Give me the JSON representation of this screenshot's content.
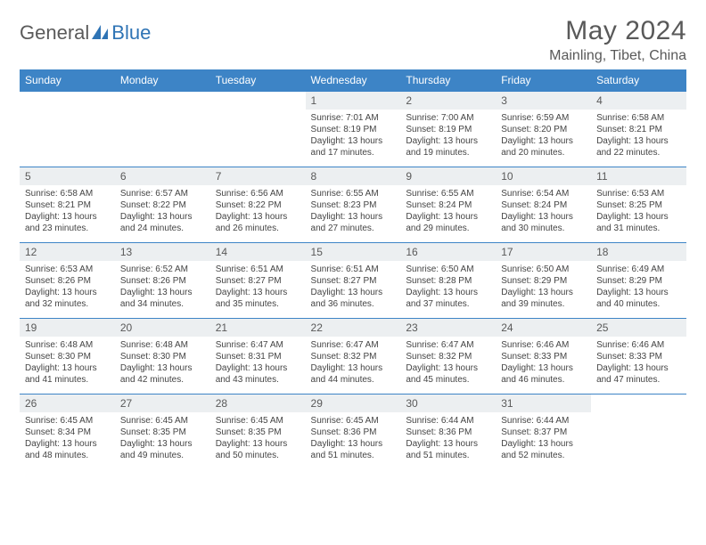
{
  "brand": {
    "part1": "General",
    "part2": "Blue"
  },
  "title": "May 2024",
  "location": "Mainling, Tibet, China",
  "colors": {
    "header_bg": "#3d84c6",
    "header_text": "#ffffff",
    "daynum_bg": "#eceff1",
    "border": "#3d84c6",
    "text": "#444444",
    "title_text": "#595959"
  },
  "weekdays": [
    "Sunday",
    "Monday",
    "Tuesday",
    "Wednesday",
    "Thursday",
    "Friday",
    "Saturday"
  ],
  "days": {
    "1": {
      "sunrise": "7:01 AM",
      "sunset": "8:19 PM",
      "daylight": "13 hours and 17 minutes."
    },
    "2": {
      "sunrise": "7:00 AM",
      "sunset": "8:19 PM",
      "daylight": "13 hours and 19 minutes."
    },
    "3": {
      "sunrise": "6:59 AM",
      "sunset": "8:20 PM",
      "daylight": "13 hours and 20 minutes."
    },
    "4": {
      "sunrise": "6:58 AM",
      "sunset": "8:21 PM",
      "daylight": "13 hours and 22 minutes."
    },
    "5": {
      "sunrise": "6:58 AM",
      "sunset": "8:21 PM",
      "daylight": "13 hours and 23 minutes."
    },
    "6": {
      "sunrise": "6:57 AM",
      "sunset": "8:22 PM",
      "daylight": "13 hours and 24 minutes."
    },
    "7": {
      "sunrise": "6:56 AM",
      "sunset": "8:22 PM",
      "daylight": "13 hours and 26 minutes."
    },
    "8": {
      "sunrise": "6:55 AM",
      "sunset": "8:23 PM",
      "daylight": "13 hours and 27 minutes."
    },
    "9": {
      "sunrise": "6:55 AM",
      "sunset": "8:24 PM",
      "daylight": "13 hours and 29 minutes."
    },
    "10": {
      "sunrise": "6:54 AM",
      "sunset": "8:24 PM",
      "daylight": "13 hours and 30 minutes."
    },
    "11": {
      "sunrise": "6:53 AM",
      "sunset": "8:25 PM",
      "daylight": "13 hours and 31 minutes."
    },
    "12": {
      "sunrise": "6:53 AM",
      "sunset": "8:26 PM",
      "daylight": "13 hours and 32 minutes."
    },
    "13": {
      "sunrise": "6:52 AM",
      "sunset": "8:26 PM",
      "daylight": "13 hours and 34 minutes."
    },
    "14": {
      "sunrise": "6:51 AM",
      "sunset": "8:27 PM",
      "daylight": "13 hours and 35 minutes."
    },
    "15": {
      "sunrise": "6:51 AM",
      "sunset": "8:27 PM",
      "daylight": "13 hours and 36 minutes."
    },
    "16": {
      "sunrise": "6:50 AM",
      "sunset": "8:28 PM",
      "daylight": "13 hours and 37 minutes."
    },
    "17": {
      "sunrise": "6:50 AM",
      "sunset": "8:29 PM",
      "daylight": "13 hours and 39 minutes."
    },
    "18": {
      "sunrise": "6:49 AM",
      "sunset": "8:29 PM",
      "daylight": "13 hours and 40 minutes."
    },
    "19": {
      "sunrise": "6:48 AM",
      "sunset": "8:30 PM",
      "daylight": "13 hours and 41 minutes."
    },
    "20": {
      "sunrise": "6:48 AM",
      "sunset": "8:30 PM",
      "daylight": "13 hours and 42 minutes."
    },
    "21": {
      "sunrise": "6:47 AM",
      "sunset": "8:31 PM",
      "daylight": "13 hours and 43 minutes."
    },
    "22": {
      "sunrise": "6:47 AM",
      "sunset": "8:32 PM",
      "daylight": "13 hours and 44 minutes."
    },
    "23": {
      "sunrise": "6:47 AM",
      "sunset": "8:32 PM",
      "daylight": "13 hours and 45 minutes."
    },
    "24": {
      "sunrise": "6:46 AM",
      "sunset": "8:33 PM",
      "daylight": "13 hours and 46 minutes."
    },
    "25": {
      "sunrise": "6:46 AM",
      "sunset": "8:33 PM",
      "daylight": "13 hours and 47 minutes."
    },
    "26": {
      "sunrise": "6:45 AM",
      "sunset": "8:34 PM",
      "daylight": "13 hours and 48 minutes."
    },
    "27": {
      "sunrise": "6:45 AM",
      "sunset": "8:35 PM",
      "daylight": "13 hours and 49 minutes."
    },
    "28": {
      "sunrise": "6:45 AM",
      "sunset": "8:35 PM",
      "daylight": "13 hours and 50 minutes."
    },
    "29": {
      "sunrise": "6:45 AM",
      "sunset": "8:36 PM",
      "daylight": "13 hours and 51 minutes."
    },
    "30": {
      "sunrise": "6:44 AM",
      "sunset": "8:36 PM",
      "daylight": "13 hours and 51 minutes."
    },
    "31": {
      "sunrise": "6:44 AM",
      "sunset": "8:37 PM",
      "daylight": "13 hours and 52 minutes."
    }
  },
  "labels": {
    "sunrise": "Sunrise:",
    "sunset": "Sunset:",
    "daylight": "Daylight:"
  },
  "layout": {
    "first_weekday_index": 3,
    "days_in_month": 31,
    "columns": 7
  }
}
